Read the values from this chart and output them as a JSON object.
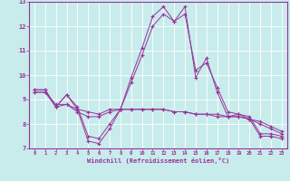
{
  "xlabel": "Windchill (Refroidissement éolien,°C)",
  "xlim": [
    -0.5,
    23.5
  ],
  "ylim": [
    7,
    13
  ],
  "yticks": [
    7,
    8,
    9,
    10,
    11,
    12,
    13
  ],
  "xticks": [
    0,
    1,
    2,
    3,
    4,
    5,
    6,
    7,
    8,
    9,
    10,
    11,
    12,
    13,
    14,
    15,
    16,
    17,
    18,
    19,
    20,
    21,
    22,
    23
  ],
  "bg_color": "#c8ecec",
  "line_color": "#993399",
  "grid_color": "#ffffff",
  "series": [
    [
      9.4,
      9.4,
      8.7,
      9.2,
      8.6,
      7.3,
      7.2,
      7.8,
      8.6,
      9.9,
      11.1,
      12.4,
      12.8,
      12.2,
      12.8,
      9.9,
      10.7,
      9.3,
      8.3,
      8.4,
      8.2,
      7.5,
      7.5,
      7.4
    ],
    [
      9.4,
      9.4,
      8.7,
      9.2,
      8.7,
      7.5,
      7.4,
      8.0,
      8.6,
      9.7,
      10.8,
      12.0,
      12.5,
      12.2,
      12.5,
      10.2,
      10.5,
      9.5,
      8.5,
      8.4,
      8.3,
      7.6,
      7.6,
      7.5
    ],
    [
      9.3,
      9.3,
      8.7,
      8.8,
      8.6,
      8.5,
      8.4,
      8.6,
      8.6,
      8.6,
      8.6,
      8.6,
      8.6,
      8.5,
      8.5,
      8.4,
      8.4,
      8.4,
      8.3,
      8.3,
      8.2,
      8.1,
      7.9,
      7.7
    ],
    [
      9.3,
      9.3,
      8.8,
      8.8,
      8.5,
      8.3,
      8.3,
      8.5,
      8.6,
      8.6,
      8.6,
      8.6,
      8.6,
      8.5,
      8.5,
      8.4,
      8.4,
      8.3,
      8.3,
      8.3,
      8.2,
      8.0,
      7.8,
      7.6
    ]
  ]
}
